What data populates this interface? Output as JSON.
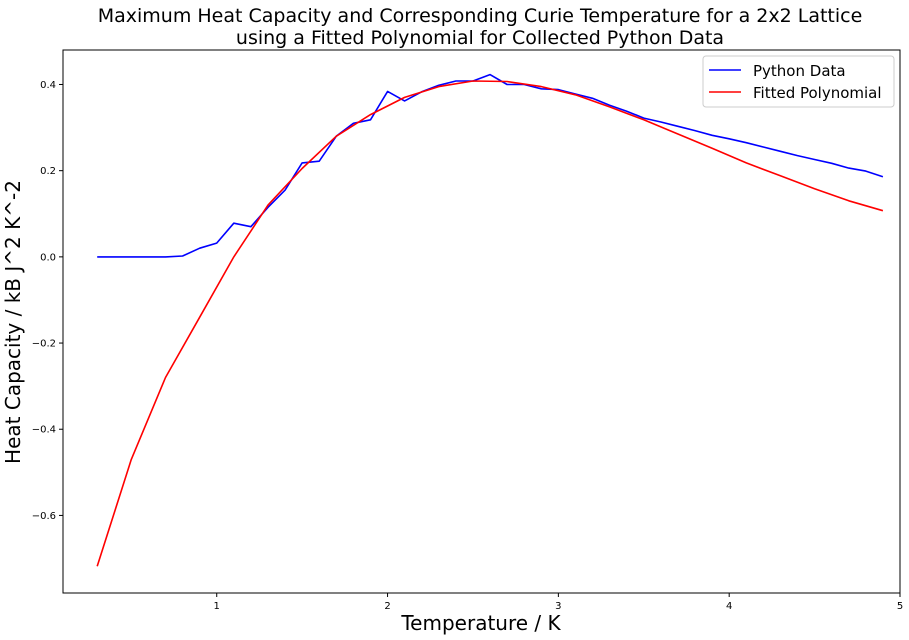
{
  "chart_data": {
    "type": "line",
    "title": "Maximum Heat Capacity and Corresponding Curie Temperature for a 2x2 Lattice",
    "subtitle": "using a Fitted Polynomial for Collected Python Data",
    "xlabel": "Temperature / K",
    "ylabel": "Heat Capacity / kB J^2 K^-2",
    "xlim": [
      0.1,
      5.0
    ],
    "ylim": [
      -0.78,
      0.48
    ],
    "xticks": [
      "1",
      "2",
      "3",
      "4",
      "5"
    ],
    "yticks": [
      "−0.6",
      "−0.4",
      "−0.2",
      "0.0",
      "0.2",
      "0.4"
    ],
    "grid": false,
    "legend_position": "top-right",
    "series": [
      {
        "name": "Python Data",
        "color": "#0000ff",
        "x": [
          0.3,
          0.4,
          0.5,
          0.6,
          0.7,
          0.8,
          0.9,
          1.0,
          1.1,
          1.2,
          1.3,
          1.4,
          1.5,
          1.6,
          1.7,
          1.8,
          1.9,
          2.0,
          2.1,
          2.2,
          2.3,
          2.4,
          2.5,
          2.6,
          2.7,
          2.8,
          2.9,
          3.0,
          3.1,
          3.2,
          3.3,
          3.4,
          3.5,
          3.6,
          3.7,
          3.8,
          3.9,
          4.0,
          4.1,
          4.2,
          4.3,
          4.4,
          4.5,
          4.6,
          4.7,
          4.8,
          4.9
        ],
        "y": [
          0.0,
          0.0,
          0.0,
          0.0,
          0.0,
          0.002,
          0.02,
          0.032,
          0.078,
          0.07,
          0.115,
          0.155,
          0.218,
          0.222,
          0.28,
          0.31,
          0.318,
          0.384,
          0.362,
          0.383,
          0.398,
          0.408,
          0.408,
          0.423,
          0.4,
          0.4,
          0.39,
          0.388,
          0.378,
          0.368,
          0.352,
          0.338,
          0.322,
          0.313,
          0.303,
          0.293,
          0.282,
          0.274,
          0.265,
          0.255,
          0.245,
          0.235,
          0.226,
          0.217,
          0.206,
          0.199,
          0.186
        ]
      },
      {
        "name": "Fitted Polynomial",
        "color": "#ff0000",
        "x": [
          0.3,
          0.5,
          0.7,
          0.9,
          1.1,
          1.3,
          1.5,
          1.7,
          1.9,
          2.1,
          2.3,
          2.5,
          2.7,
          2.9,
          3.1,
          3.3,
          3.5,
          3.7,
          3.9,
          4.1,
          4.3,
          4.5,
          4.7,
          4.9
        ],
        "y": [
          -0.718,
          -0.47,
          -0.28,
          -0.14,
          0.0,
          0.12,
          0.205,
          0.28,
          0.33,
          0.37,
          0.395,
          0.408,
          0.407,
          0.395,
          0.376,
          0.348,
          0.318,
          0.285,
          0.252,
          0.218,
          0.188,
          0.158,
          0.13,
          0.107
        ]
      }
    ]
  }
}
